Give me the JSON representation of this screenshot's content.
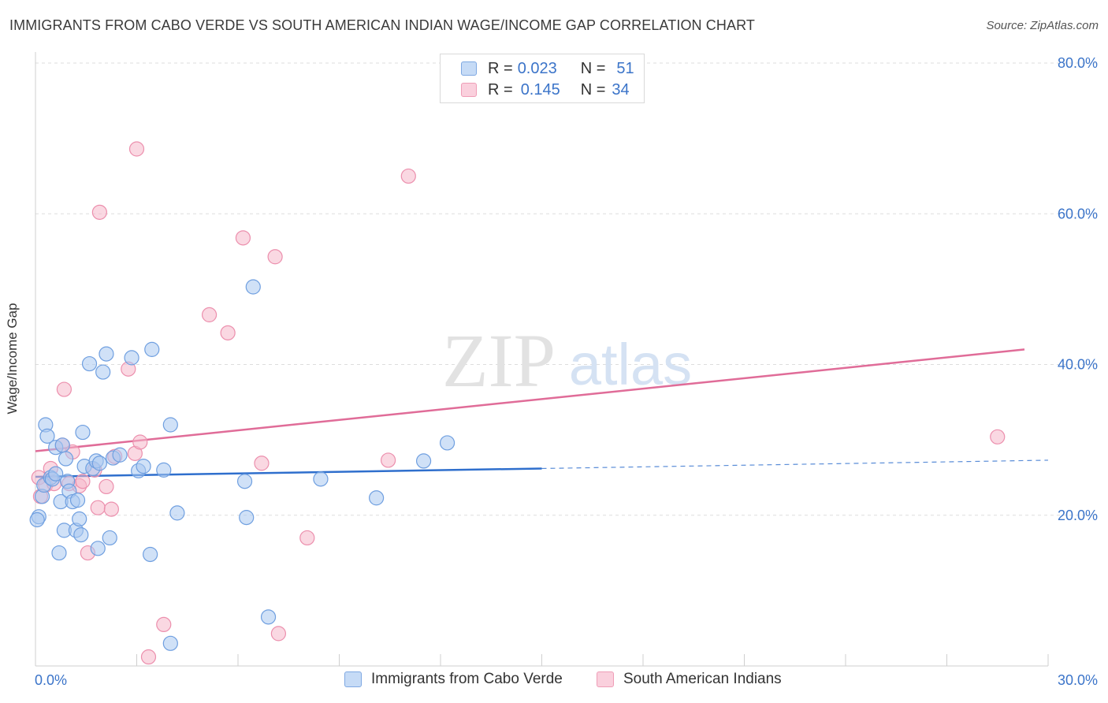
{
  "header": {
    "title": "IMMIGRANTS FROM CABO VERDE VS SOUTH AMERICAN INDIAN WAGE/INCOME GAP CORRELATION CHART",
    "source": "Source: ZipAtlas.com"
  },
  "watermark": {
    "zip": "ZIP",
    "atlas": "atlas"
  },
  "legend": {
    "rows": [
      {
        "r_label": "R = ",
        "r_value": "0.023",
        "n_label": "N = ",
        "n_value": "51",
        "color": "#a9c8f0"
      },
      {
        "r_label": "R = ",
        "r_value": "0.145",
        "n_label": "N = ",
        "n_value": "34",
        "color": "#f5b8cb"
      }
    ]
  },
  "bottom_legend": {
    "items": [
      {
        "label": "Immigrants from Cabo Verde",
        "color": "#a9c8f0"
      },
      {
        "label": "South American Indians",
        "color": "#f5b8cb"
      }
    ]
  },
  "colors": {
    "blue_fill": "#a9c8f0",
    "blue_stroke": "#6f9fe0",
    "blue_line": "#2f6fcd",
    "pink_fill": "#f5b8cb",
    "pink_stroke": "#ec8fad",
    "pink_line": "#e06c98",
    "tick_text": "#3b74c9",
    "grid": "#dddddd"
  },
  "chart_data": {
    "type": "scatter",
    "title": "IMMIGRANTS FROM CABO VERDE VS SOUTH AMERICAN INDIAN WAGE/INCOME GAP CORRELATION CHART",
    "xlabel": "",
    "ylabel": "Wage/Income Gap",
    "xlim": [
      0,
      30
    ],
    "ylim": [
      0,
      80
    ],
    "x_tick_labels": [
      "0.0%",
      "30.0%"
    ],
    "y_ticks": [
      20,
      40,
      60,
      80
    ],
    "y_tick_labels": [
      "20.0%",
      "40.0%",
      "60.0%",
      "80.0%"
    ],
    "grid": true,
    "legend_position": "top-center",
    "series": [
      {
        "name": "Immigrants from Cabo Verde",
        "r": 0.023,
        "n": 51,
        "trend": {
          "x0": 0,
          "y0": 25.1,
          "x1": 15,
          "y1": 26.2,
          "dash_x1": 30,
          "dash_y1": 27.3
        },
        "points": [
          [
            0.1,
            19.8
          ],
          [
            0.2,
            22.5
          ],
          [
            0.25,
            24.0
          ],
          [
            0.3,
            32.0
          ],
          [
            0.35,
            30.5
          ],
          [
            0.45,
            25.0
          ],
          [
            0.5,
            24.8
          ],
          [
            0.6,
            29.0
          ],
          [
            0.6,
            25.5
          ],
          [
            0.7,
            15.0
          ],
          [
            0.75,
            21.8
          ],
          [
            0.8,
            29.3
          ],
          [
            0.85,
            18.0
          ],
          [
            0.9,
            27.5
          ],
          [
            0.95,
            24.5
          ],
          [
            1.0,
            23.2
          ],
          [
            1.1,
            21.8
          ],
          [
            1.2,
            18.0
          ],
          [
            1.25,
            22.0
          ],
          [
            1.3,
            19.5
          ],
          [
            1.35,
            17.4
          ],
          [
            1.4,
            31.0
          ],
          [
            1.45,
            26.5
          ],
          [
            1.6,
            40.1
          ],
          [
            1.7,
            26.2
          ],
          [
            1.8,
            27.2
          ],
          [
            1.85,
            15.6
          ],
          [
            1.9,
            26.9
          ],
          [
            2.0,
            39.0
          ],
          [
            2.1,
            41.4
          ],
          [
            2.2,
            17.0
          ],
          [
            2.3,
            27.6
          ],
          [
            2.5,
            28.0
          ],
          [
            2.85,
            40.9
          ],
          [
            3.05,
            25.9
          ],
          [
            3.2,
            26.5
          ],
          [
            3.4,
            14.8
          ],
          [
            3.45,
            42.0
          ],
          [
            3.8,
            26.0
          ],
          [
            4.0,
            3.0
          ],
          [
            4.0,
            32.0
          ],
          [
            4.2,
            20.3
          ],
          [
            6.2,
            24.5
          ],
          [
            6.25,
            19.7
          ],
          [
            6.45,
            50.3
          ],
          [
            6.9,
            6.5
          ],
          [
            8.45,
            24.8
          ],
          [
            10.1,
            22.3
          ],
          [
            11.5,
            27.2
          ],
          [
            12.2,
            29.6
          ],
          [
            0.05,
            19.4
          ]
        ]
      },
      {
        "name": "South American Indians",
        "r": 0.145,
        "n": 34,
        "trend": {
          "x0": 0,
          "y0": 28.5,
          "x1": 29.3,
          "y1": 42.0
        },
        "points": [
          [
            0.1,
            25.0
          ],
          [
            0.15,
            22.5
          ],
          [
            0.3,
            24.0
          ],
          [
            0.45,
            26.2
          ],
          [
            0.55,
            24.2
          ],
          [
            0.8,
            29.3
          ],
          [
            0.85,
            36.7
          ],
          [
            1.0,
            24.2
          ],
          [
            1.1,
            28.4
          ],
          [
            1.3,
            23.9
          ],
          [
            1.4,
            24.5
          ],
          [
            1.55,
            15.0
          ],
          [
            1.75,
            26.0
          ],
          [
            1.85,
            21.0
          ],
          [
            1.9,
            60.2
          ],
          [
            2.1,
            23.8
          ],
          [
            2.25,
            20.8
          ],
          [
            2.35,
            27.8
          ],
          [
            2.75,
            39.4
          ],
          [
            2.95,
            28.2
          ],
          [
            3.0,
            68.6
          ],
          [
            3.1,
            29.7
          ],
          [
            3.35,
            1.2
          ],
          [
            3.8,
            5.5
          ],
          [
            5.15,
            46.6
          ],
          [
            5.7,
            44.2
          ],
          [
            6.15,
            56.8
          ],
          [
            6.7,
            26.9
          ],
          [
            7.1,
            54.3
          ],
          [
            7.2,
            4.3
          ],
          [
            8.05,
            17.0
          ],
          [
            10.45,
            27.3
          ],
          [
            11.05,
            65.0
          ],
          [
            28.5,
            30.4
          ]
        ]
      }
    ]
  }
}
